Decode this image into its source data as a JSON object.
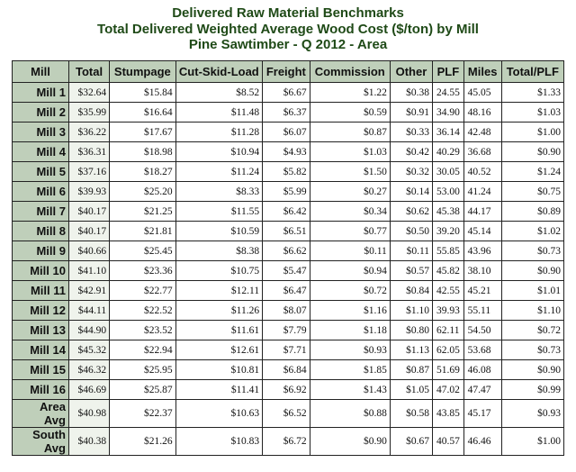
{
  "title_lines": [
    "Delivered Raw Material Benchmarks",
    "Total Delivered Weighted Average Wood Cost ($/ton) by Mill",
    "Pine Sawtimber -    Q 2012 - Area"
  ],
  "columns": [
    "Mill",
    "Total",
    "Stumpage",
    "Cut-Skid-Load",
    "Freight",
    "Commission",
    "Other",
    "PLF",
    "Miles",
    "Total/PLF"
  ],
  "rows": [
    [
      "Mill 1",
      "$32.64",
      "$15.84",
      "$8.52",
      "$6.67",
      "$1.22",
      "$0.38",
      "24.55",
      "45.05",
      "$1.33"
    ],
    [
      "Mill 2",
      "$35.99",
      "$16.64",
      "$11.48",
      "$6.37",
      "$0.59",
      "$0.91",
      "34.90",
      "48.16",
      "$1.03"
    ],
    [
      "Mill 3",
      "$36.22",
      "$17.67",
      "$11.28",
      "$6.07",
      "$0.87",
      "$0.33",
      "36.14",
      "42.48",
      "$1.00"
    ],
    [
      "Mill 4",
      "$36.31",
      "$18.98",
      "$10.94",
      "$4.93",
      "$1.03",
      "$0.42",
      "40.29",
      "36.68",
      "$0.90"
    ],
    [
      "Mill 5",
      "$37.16",
      "$18.27",
      "$11.24",
      "$5.82",
      "$1.50",
      "$0.32",
      "30.05",
      "40.52",
      "$1.24"
    ],
    [
      "Mill 6",
      "$39.93",
      "$25.20",
      "$8.33",
      "$5.99",
      "$0.27",
      "$0.14",
      "53.00",
      "41.24",
      "$0.75"
    ],
    [
      "Mill 7",
      "$40.17",
      "$21.25",
      "$11.55",
      "$6.42",
      "$0.34",
      "$0.62",
      "45.38",
      "44.17",
      "$0.89"
    ],
    [
      "Mill 8",
      "$40.17",
      "$21.81",
      "$10.59",
      "$6.51",
      "$0.77",
      "$0.50",
      "39.20",
      "45.14",
      "$1.02"
    ],
    [
      "Mill 9",
      "$40.66",
      "$25.45",
      "$8.38",
      "$6.62",
      "$0.11",
      "$0.11",
      "55.85",
      "43.96",
      "$0.73"
    ],
    [
      "Mill 10",
      "$41.10",
      "$23.36",
      "$10.75",
      "$5.47",
      "$0.94",
      "$0.57",
      "45.82",
      "38.10",
      "$0.90"
    ],
    [
      "Mill 11",
      "$42.91",
      "$22.77",
      "$12.11",
      "$6.47",
      "$0.72",
      "$0.84",
      "42.55",
      "45.21",
      "$1.01"
    ],
    [
      "Mill 12",
      "$44.11",
      "$22.52",
      "$11.26",
      "$8.07",
      "$1.16",
      "$1.10",
      "39.93",
      "55.11",
      "$1.10"
    ],
    [
      "Mill 13",
      "$44.90",
      "$23.52",
      "$11.61",
      "$7.79",
      "$1.18",
      "$0.80",
      "62.11",
      "54.50",
      "$0.72"
    ],
    [
      "Mill 14",
      "$45.32",
      "$22.94",
      "$12.61",
      "$7.71",
      "$0.93",
      "$1.13",
      "62.05",
      "53.68",
      "$0.73"
    ],
    [
      "Mill 15",
      "$46.32",
      "$25.95",
      "$10.81",
      "$6.84",
      "$1.85",
      "$0.87",
      "51.69",
      "46.08",
      "$0.90"
    ],
    [
      "Mill 16",
      "$46.69",
      "$25.87",
      "$11.41",
      "$6.92",
      "$1.43",
      "$1.05",
      "47.02",
      "47.47",
      "$0.99"
    ],
    [
      "Area Avg",
      "$40.98",
      "$22.37",
      "$10.63",
      "$6.52",
      "$0.88",
      "$0.58",
      "43.85",
      "45.17",
      "$0.93"
    ],
    [
      "South Avg",
      "$40.38",
      "$21.26",
      "$10.83",
      "$6.72",
      "$0.90",
      "$0.67",
      "40.57",
      "46.46",
      "$1.00"
    ]
  ]
}
